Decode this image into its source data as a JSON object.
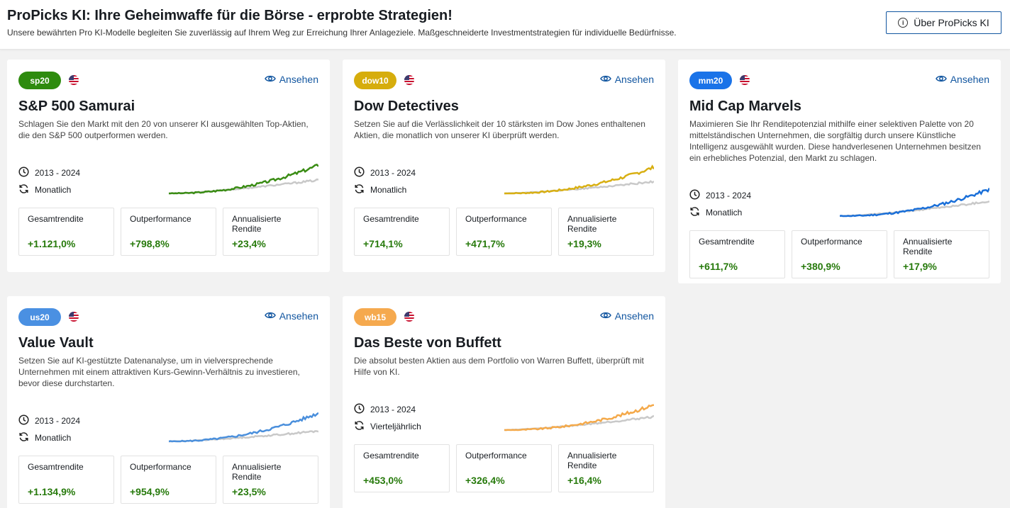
{
  "header": {
    "title": "ProPicks KI: Ihre Geheimwaffe für die Börse - erprobte Strategien!",
    "subtitle": "Unsere bewährten Pro KI-Modelle begleiten Sie zuverlässig auf Ihrem Weg zur Erreichung Ihrer Anlageziele. Maßgeschneiderte Investmentstrategien für individuelle Bedürfnisse.",
    "about_label": "Über ProPicks KI"
  },
  "common": {
    "view_label": "Ansehen",
    "stat_labels": [
      "Gesamtrendite",
      "Outperformance",
      "Annualisierte Rendite"
    ]
  },
  "cards": [
    {
      "badge": "sp20",
      "badge_color": "#2e8b0e",
      "line_color": "#3a8c14",
      "title": "S&P 500 Samurai",
      "description": "Schlagen Sie den Markt mit den 20 von unserer KI ausgewählten Top-Aktien, die den S&P 500 outperformen werden.",
      "period": "2013 - 2024",
      "rebalance": "Monatlich",
      "stats": [
        "+1.121,0%",
        "+798,8%",
        "+23,4%"
      ]
    },
    {
      "badge": "dow10",
      "badge_color": "#d6ad0c",
      "line_color": "#d8af12",
      "title": "Dow Detectives",
      "description": "Setzen Sie auf die Verlässlichkeit der 10 stärksten im Dow Jones enthaltenen Aktien, die monatlich von unserer KI überprüft werden.",
      "period": "2013 - 2024",
      "rebalance": "Monatlich",
      "stats": [
        "+714,1%",
        "+471,7%",
        "+19,3%"
      ]
    },
    {
      "badge": "mm20",
      "badge_color": "#1a73e8",
      "line_color": "#1a6fd8",
      "title": "Mid Cap Marvels",
      "description": "Maximieren Sie Ihr Renditepotenzial mithilfe einer selektiven Palette von 20 mittelständischen Unternehmen, die sorgfältig durch unsere Künstliche Intelligenz ausgewählt wurden. Diese handverlesenen Unternehmen besitzen ein erhebliches Potenzial, den Markt zu schlagen.",
      "period": "2013 - 2024",
      "rebalance": "Monatlich",
      "stats": [
        "+611,7%",
        "+380,9%",
        "+17,9%"
      ]
    },
    {
      "badge": "us20",
      "badge_color": "#4a90e2",
      "line_color": "#4a8fdc",
      "title": "Value Vault",
      "description": "Setzen Sie auf KI-gestützte Datenanalyse, um in vielversprechende Unternehmen mit einem attraktiven Kurs-Gewinn-Verhältnis zu investieren, bevor diese durchstarten.",
      "period": "2013 - 2024",
      "rebalance": "Monatlich",
      "stats": [
        "+1.134,9%",
        "+954,9%",
        "+23,5%"
      ]
    },
    {
      "badge": "wb15",
      "badge_color": "#f5a94e",
      "line_color": "#f4a94a",
      "title": "Das Beste von Buffett",
      "description": "Die absolut besten Aktien aus dem Portfolio von Warren Buffett, überprüft mit Hilfe von KI.",
      "period": "2013 - 2024",
      "rebalance": "Vierteljährlich",
      "stats": [
        "+453,0%",
        "+326,4%",
        "+16,4%"
      ]
    }
  ]
}
